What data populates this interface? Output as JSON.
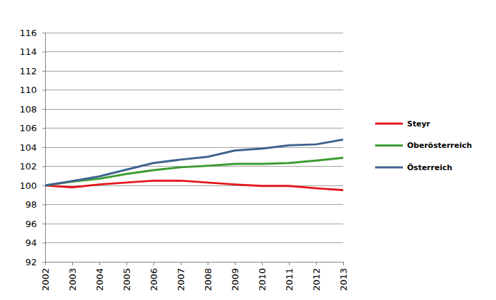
{
  "chart_data": {
    "type": "line",
    "x": [
      2002,
      2003,
      2004,
      2005,
      2006,
      2007,
      2008,
      2009,
      2010,
      2011,
      2012,
      2013
    ],
    "xlim": [
      2002,
      2013
    ],
    "xticks": [
      2002,
      2003,
      2004,
      2005,
      2006,
      2007,
      2008,
      2009,
      2010,
      2011,
      2012,
      2013
    ],
    "ylim": [
      92,
      116
    ],
    "yticks": [
      92,
      94,
      96,
      98,
      100,
      102,
      104,
      106,
      108,
      110,
      112,
      114,
      116
    ],
    "grid": true,
    "legend": "right",
    "series": [
      {
        "name": "Steyr",
        "color": "#e3161b",
        "values": [
          100,
          99.8,
          100.1,
          100.3,
          100.5,
          100.5,
          100.3,
          100.1,
          99.95,
          99.95,
          99.7,
          99.5
        ]
      },
      {
        "name": "Oberösterreich",
        "color": "#3a9c2f",
        "values": [
          100,
          100.4,
          100.7,
          101.2,
          101.6,
          101.9,
          102.05,
          102.25,
          102.25,
          102.35,
          102.6,
          102.9
        ]
      },
      {
        "name": "Österreich",
        "color": "#3e6390",
        "values": [
          100,
          100.45,
          100.95,
          101.65,
          102.35,
          102.7,
          103.0,
          103.65,
          103.85,
          104.2,
          104.3,
          104.8
        ]
      }
    ]
  }
}
